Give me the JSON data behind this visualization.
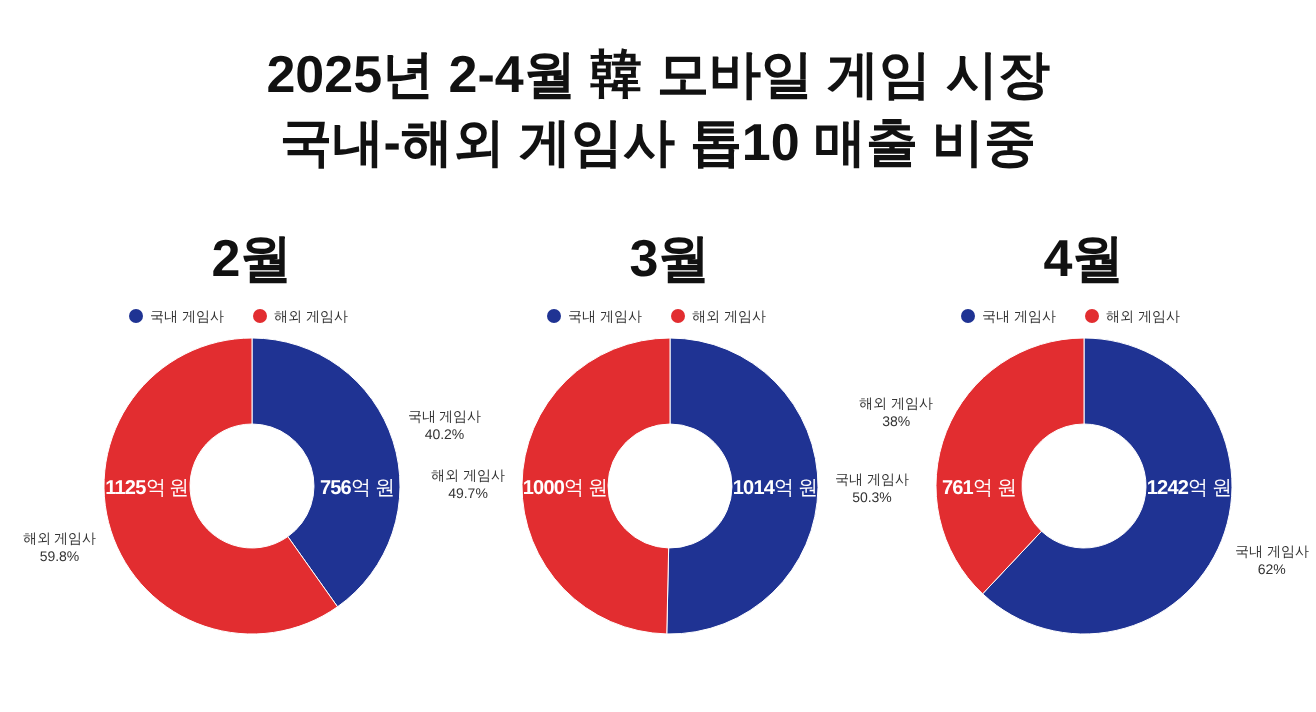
{
  "chart_data": [
    {
      "type": "other",
      "title": "2025년 2-4월 韓 모바일 게임 시장",
      "subtitle": "국내-해외 게임사 톱10 매출 비중"
    },
    {
      "type": "donut",
      "title": "2월",
      "categories": [
        "국내 게임사",
        "해외 게임사"
      ],
      "values": [
        756,
        1125
      ],
      "colors": [
        "#1f3393",
        "#e22d30"
      ],
      "value_labels": [
        "756억 원",
        "1125억 원"
      ],
      "annotations": [
        "국내 게임사\n40.2%",
        "해외 게임사\n59.8%"
      ],
      "legend": "top"
    },
    {
      "type": "donut",
      "title": "3월",
      "categories": [
        "국내 게임사",
        "해외 게임사"
      ],
      "values": [
        1014,
        1000
      ],
      "colors": [
        "#1f3393",
        "#e22d30"
      ],
      "value_labels": [
        "1014억 원",
        "1000억 원"
      ],
      "annotations": [
        "국내 게임사\n50.3%",
        "해외 게임사\n49.7%"
      ],
      "legend": "top"
    },
    {
      "type": "donut",
      "title": "4월",
      "categories": [
        "국내 게임사",
        "해외 게임사"
      ],
      "values": [
        1242,
        761
      ],
      "colors": [
        "#1f3393",
        "#e22d30"
      ],
      "value_labels": [
        "1242억 원",
        "761억 원"
      ],
      "annotations": [
        "국내 게임사\n62%",
        "해외 게임사\n38%"
      ],
      "legend": "top"
    }
  ]
}
